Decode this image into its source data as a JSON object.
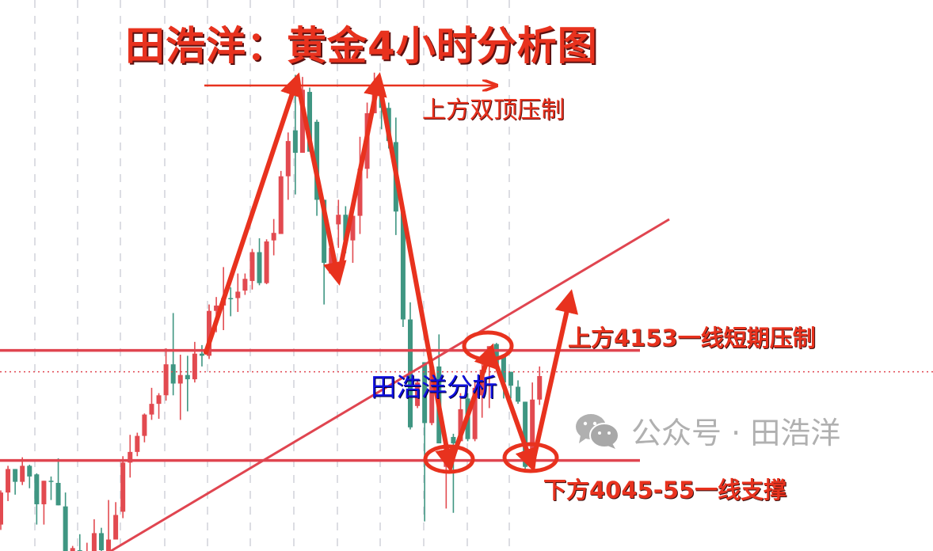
{
  "chart_data": {
    "type": "candlestick",
    "title": "田浩洋：黄金4小时分析图",
    "xlabel": "",
    "ylabel": "",
    "ylim": [
      3965,
      4420
    ],
    "grid": "vertical dashed",
    "colors": {
      "up": "#e24a50",
      "down": "#3f9682",
      "annotation": "#e8321e",
      "level_line": "#e04550",
      "blue_text": "#1010e0",
      "watermark": "#b0b0b0"
    },
    "candles": [
      {
        "o": 3990,
        "h": 4022,
        "l": 3985,
        "c": 4020
      },
      {
        "o": 4020,
        "h": 4045,
        "l": 4012,
        "c": 4042
      },
      {
        "o": 4042,
        "h": 4042,
        "l": 4018,
        "c": 4030
      },
      {
        "o": 4030,
        "h": 4053,
        "l": 4027,
        "c": 4045
      },
      {
        "o": 4045,
        "h": 4046,
        "l": 4024,
        "c": 4035
      },
      {
        "o": 4037,
        "h": 4038,
        "l": 3990,
        "c": 4009
      },
      {
        "o": 4009,
        "h": 4031,
        "l": 3990,
        "c": 4031
      },
      {
        "o": 4031,
        "h": 4035,
        "l": 4013,
        "c": 4030
      },
      {
        "o": 4029,
        "h": 4052,
        "l": 4008,
        "c": 4008
      },
      {
        "o": 4007,
        "h": 4020,
        "l": 3950,
        "c": 3955
      },
      {
        "o": 3960,
        "h": 3970,
        "l": 3955,
        "c": 3968
      },
      {
        "o": 3966,
        "h": 3981,
        "l": 3952,
        "c": 3958
      },
      {
        "o": 3958,
        "h": 3973,
        "l": 3955,
        "c": 3962
      },
      {
        "o": 3960,
        "h": 3995,
        "l": 3955,
        "c": 3982
      },
      {
        "o": 3982,
        "h": 3987,
        "l": 3962,
        "c": 3966
      },
      {
        "o": 3962,
        "h": 4013,
        "l": 3958,
        "c": 3976
      },
      {
        "o": 3976,
        "h": 4011,
        "l": 3976,
        "c": 3999
      },
      {
        "o": 4002,
        "h": 4054,
        "l": 3996,
        "c": 4048
      },
      {
        "o": 4048,
        "h": 4074,
        "l": 4034,
        "c": 4058
      },
      {
        "o": 4058,
        "h": 4076,
        "l": 4054,
        "c": 4073
      },
      {
        "o": 4073,
        "h": 4094,
        "l": 4067,
        "c": 4093
      },
      {
        "o": 4093,
        "h": 4118,
        "l": 4088,
        "c": 4103
      },
      {
        "o": 4103,
        "h": 4113,
        "l": 4089,
        "c": 4111
      },
      {
        "o": 4111,
        "h": 4155,
        "l": 4106,
        "c": 4140
      },
      {
        "o": 4140,
        "h": 4188,
        "l": 4111,
        "c": 4122
      },
      {
        "o": 4122,
        "h": 4149,
        "l": 4088,
        "c": 4130
      },
      {
        "o": 4130,
        "h": 4148,
        "l": 4096,
        "c": 4126
      },
      {
        "o": 4126,
        "h": 4161,
        "l": 4123,
        "c": 4150
      },
      {
        "o": 4150,
        "h": 4158,
        "l": 4138,
        "c": 4148
      },
      {
        "o": 4148,
        "h": 4196,
        "l": 4145,
        "c": 4190
      },
      {
        "o": 4190,
        "h": 4203,
        "l": 4170,
        "c": 4195
      },
      {
        "o": 4195,
        "h": 4231,
        "l": 4172,
        "c": 4202
      },
      {
        "o": 4202,
        "h": 4212,
        "l": 4185,
        "c": 4201
      },
      {
        "o": 4202,
        "h": 4225,
        "l": 4189,
        "c": 4208
      },
      {
        "o": 4209,
        "h": 4225,
        "l": 4205,
        "c": 4220
      },
      {
        "o": 4218,
        "h": 4248,
        "l": 4210,
        "c": 4245
      },
      {
        "o": 4245,
        "h": 4258,
        "l": 4214,
        "c": 4216
      },
      {
        "o": 4216,
        "h": 4257,
        "l": 4215,
        "c": 4255
      },
      {
        "o": 4256,
        "h": 4276,
        "l": 4242,
        "c": 4263
      },
      {
        "o": 4262,
        "h": 4321,
        "l": 4262,
        "c": 4316
      },
      {
        "o": 4316,
        "h": 4357,
        "l": 4294,
        "c": 4349
      },
      {
        "o": 4359,
        "h": 4411,
        "l": 4299,
        "c": 4338
      },
      {
        "o": 4338,
        "h": 4409,
        "l": 4338,
        "c": 4397
      },
      {
        "o": 4395,
        "h": 4399,
        "l": 4339,
        "c": 4339
      },
      {
        "o": 4367,
        "h": 4369,
        "l": 4279,
        "c": 4294
      },
      {
        "o": 4294,
        "h": 4294,
        "l": 4196,
        "c": 4235
      },
      {
        "o": 4225,
        "h": 4255,
        "l": 4225,
        "c": 4249
      },
      {
        "o": 4271,
        "h": 4294,
        "l": 4249,
        "c": 4280
      },
      {
        "o": 4280,
        "h": 4288,
        "l": 4244,
        "c": 4256
      },
      {
        "o": 4256,
        "h": 4294,
        "l": 4235,
        "c": 4279
      },
      {
        "o": 4279,
        "h": 4353,
        "l": 4262,
        "c": 4323
      },
      {
        "o": 4323,
        "h": 4385,
        "l": 4314,
        "c": 4375
      },
      {
        "o": 4375,
        "h": 4413,
        "l": 4375,
        "c": 4398
      },
      {
        "o": 4394,
        "h": 4394,
        "l": 4360,
        "c": 4380
      },
      {
        "o": 4380,
        "h": 4385,
        "l": 4342,
        "c": 4349
      },
      {
        "o": 4348,
        "h": 4371,
        "l": 4261,
        "c": 4283
      },
      {
        "o": 4283,
        "h": 4283,
        "l": 4175,
        "c": 4182
      },
      {
        "o": 4182,
        "h": 4198,
        "l": 4079,
        "c": 4081
      },
      {
        "o": 4101,
        "h": 4125,
        "l": 4099,
        "c": 4123
      },
      {
        "o": 4142,
        "h": 4142,
        "l": 3993,
        "c": 4085
      },
      {
        "o": 4085,
        "h": 4140,
        "l": 4083,
        "c": 4138
      },
      {
        "o": 4138,
        "h": 4168,
        "l": 4066,
        "c": 4066
      },
      {
        "o": 4044,
        "h": 4066,
        "l": 4005,
        "c": 4065
      },
      {
        "o": 4072,
        "h": 4075,
        "l": 4001,
        "c": 4066
      },
      {
        "o": 4068,
        "h": 4113,
        "l": 4068,
        "c": 4098
      },
      {
        "o": 4108,
        "h": 4113,
        "l": 4068,
        "c": 4070
      },
      {
        "o": 4070,
        "h": 4123,
        "l": 4068,
        "c": 4118
      },
      {
        "o": 4111,
        "h": 4142,
        "l": 4090,
        "c": 4135
      },
      {
        "o": 4138,
        "h": 4157,
        "l": 4099,
        "c": 4157
      },
      {
        "o": 4159,
        "h": 4160,
        "l": 4135,
        "c": 4138
      },
      {
        "o": 4148,
        "h": 4148,
        "l": 4108,
        "c": 4123
      },
      {
        "o": 4133,
        "h": 4133,
        "l": 4108,
        "c": 4120
      },
      {
        "o": 4119,
        "h": 4125,
        "l": 4103,
        "c": 4105
      },
      {
        "o": 4105,
        "h": 4105,
        "l": 4042,
        "c": 4044
      },
      {
        "o": 4061,
        "h": 4123,
        "l": 4053,
        "c": 4107
      },
      {
        "o": 4107,
        "h": 4138,
        "l": 4102,
        "c": 4129
      }
    ],
    "levels": {
      "resistance": 4153,
      "support": 4050,
      "current": 4133
    },
    "annotations": {
      "double_top": "上方双顶压制",
      "resistance": "上方4153一线短期压制",
      "support": "下方4045-55一线支撑",
      "author_mark": "田浩洋分析"
    }
  },
  "watermark": {
    "icon": "wechat-icon",
    "text": "公众号 · 田浩洋"
  }
}
